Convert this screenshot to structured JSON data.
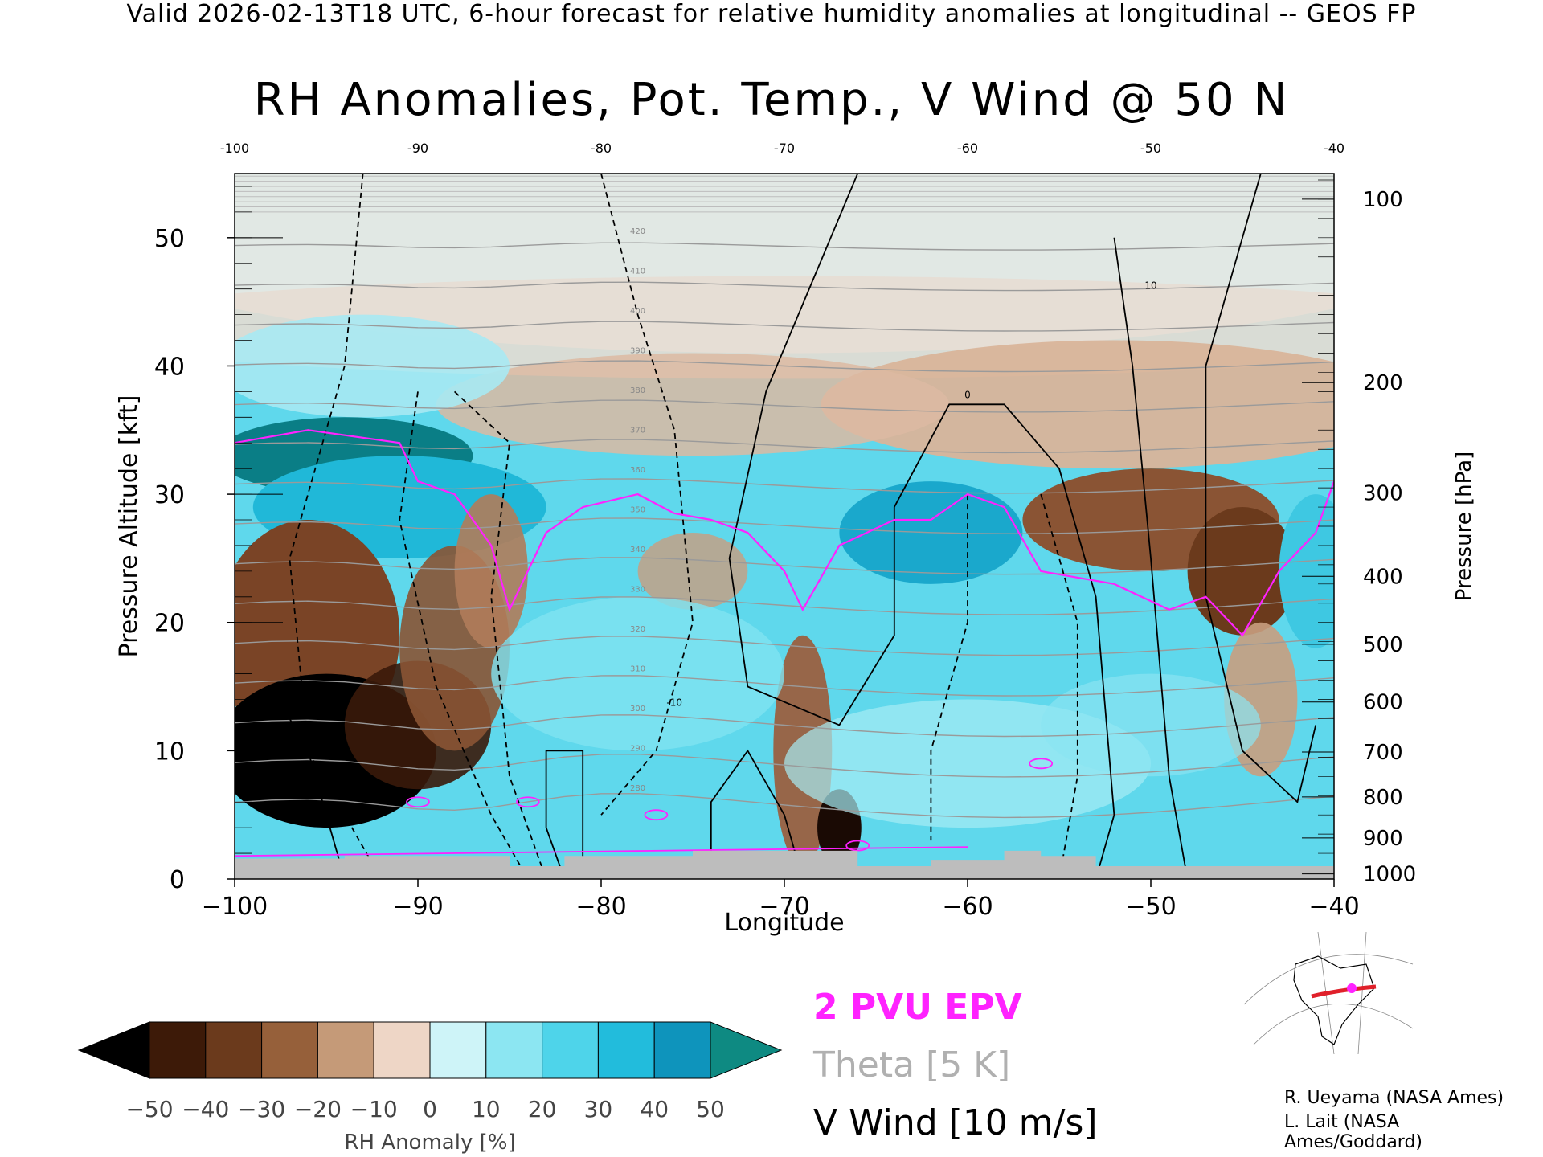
{
  "header": "Valid 2026-02-13T18 UTC, 6-hour forecast for relative humidity anomalies at longitudinal -- GEOS FP",
  "chart_data": {
    "type": "heatmap",
    "title": "RH Anomalies, Pot. Temp., V Wind @ 50 N",
    "xlabel": "Longitude",
    "ylabel_left": "Pressure Altitude [kft]",
    "ylabel_right": "Pressure [hPa]",
    "xlim": [
      -100,
      -40
    ],
    "ylim": [
      0,
      55
    ],
    "x_ticks": [
      "-100",
      "-90",
      "-80",
      "-70",
      "-60",
      "-50",
      "-40"
    ],
    "top_x_ticks": [
      "-100",
      "-90",
      "-80",
      "-70",
      "-60",
      "-50",
      "-40"
    ],
    "y_ticks": [
      {
        "label": "0",
        "value": 0
      },
      {
        "label": "10",
        "value": 10
      },
      {
        "label": "20",
        "value": 20
      },
      {
        "label": "30",
        "value": 30
      },
      {
        "label": "40",
        "value": 40
      },
      {
        "label": "50",
        "value": 50
      }
    ],
    "pressure_ticks": [
      {
        "label": "100",
        "kft": 53.0
      },
      {
        "label": "200",
        "kft": 38.7
      },
      {
        "label": "300",
        "kft": 30.1
      },
      {
        "label": "400",
        "kft": 23.6
      },
      {
        "label": "500",
        "kft": 18.3
      },
      {
        "label": "600",
        "kft": 13.8
      },
      {
        "label": "700",
        "kft": 9.9
      },
      {
        "label": "800",
        "kft": 6.4
      },
      {
        "label": "900",
        "kft": 3.2
      },
      {
        "label": "1000",
        "kft": 0.4
      }
    ],
    "colorbar": {
      "label": "RH Anomaly [%]",
      "tick_labels": [
        "-50",
        "-40",
        "-30",
        "-20",
        "-10",
        "0",
        "10",
        "20",
        "30",
        "40",
        "50"
      ],
      "colors": [
        "#000000",
        "#3d1a08",
        "#6b3a1c",
        "#96603a",
        "#c59a78",
        "#eed6c6",
        "#cef4f8",
        "#8ce6f2",
        "#4ed4ea",
        "#22bcdc",
        "#0e94bc",
        "#0a6e94",
        "#0e8a82"
      ]
    },
    "theta_contours": {
      "interval_K": 5,
      "labels": [
        "280",
        "290",
        "300",
        "310",
        "320",
        "330",
        "340",
        "350",
        "360",
        "370",
        "380",
        "390",
        "400",
        "410",
        "420"
      ]
    },
    "vwind_contour_labels": [
      "-10",
      "0",
      "10"
    ],
    "pv_contour": "2 PVU",
    "legend": [
      {
        "text": "2 PVU EPV",
        "color": "#ff22ff"
      },
      {
        "text": "Theta [5 K]",
        "color": "#b0b0b0"
      },
      {
        "text": "V Wind [10 m/s]",
        "color": "#000000"
      }
    ]
  },
  "credits": [
    "R. Ueyama (NASA Ames)",
    "L. Lait (NASA Ames/Goddard)"
  ]
}
